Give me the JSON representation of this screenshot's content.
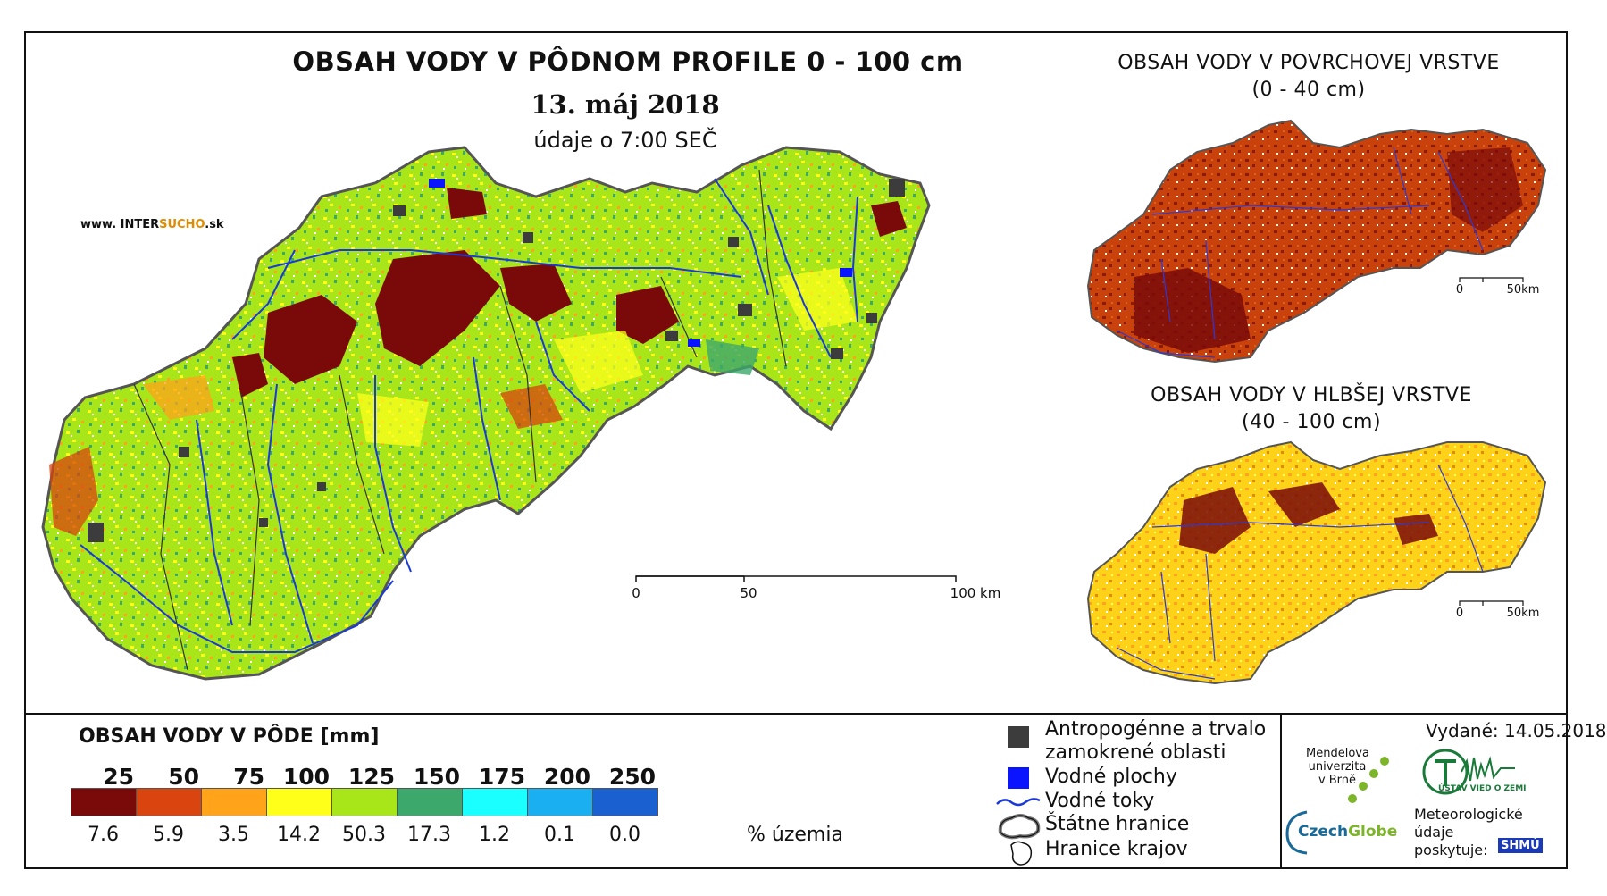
{
  "main_map": {
    "title": "OBSAH VODY V PÔDNOM PROFILE 0 - 100 cm",
    "date": "13. máj 2018",
    "subtitle": "údaje o 7:00 SEČ",
    "website_prefix": "www. INTER",
    "website_brand": "SUCHO",
    "website_suffix": ".sk",
    "scale": {
      "start": "0",
      "mid": "50",
      "end": "100 km"
    }
  },
  "inset_top": {
    "title_line1": "OBSAH VODY V POVRCHOVEJ VRSTVE",
    "title_line2": "(0 - 40 cm)",
    "scale": {
      "start": "0",
      "end": "50km"
    }
  },
  "inset_bottom": {
    "title_line1": "OBSAH VODY V HLBŠEJ VRSTVE",
    "title_line2": "(40 - 100 cm)",
    "scale": {
      "start": "0",
      "end": "50km"
    }
  },
  "legend": {
    "title": "OBSAH VODY V PÔDE [mm]",
    "class_limits": [
      "25",
      "50",
      "75",
      "100",
      "125",
      "150",
      "175",
      "200",
      "250"
    ],
    "colors": [
      "#7a0a0a",
      "#d9440f",
      "#ffa31a",
      "#ffff1a",
      "#a8e61a",
      "#3da86b",
      "#1affff",
      "#1aaff0",
      "#1a60d1"
    ],
    "percentages": [
      "7.6",
      "5.9",
      "3.5",
      "14.2",
      "50.3",
      "17.3",
      "1.2",
      "0.1",
      "0.0"
    ],
    "percent_unit": "% územia"
  },
  "symbols": {
    "anthropogenic_line1": "Antropogénne a trvalo",
    "anthropogenic_line2": "zamokrené oblasti",
    "water_bodies": "Vodné plochy",
    "rivers": "Vodné toky",
    "state_border": "Štátne hranice",
    "region_border": "Hranice krajov",
    "colors": {
      "anthropogenic": "#3c3c3c",
      "water": "#0a14ff",
      "river": "#1a3ad8"
    }
  },
  "credits": {
    "issued": "Vydané: 14.05.2018",
    "mendel_line1": "Mendelova",
    "mendel_line2": "univerzita",
    "mendel_line3": "v Brně",
    "czechglobe_a": "Czech",
    "czechglobe_b": "Globe",
    "ustav": "ÚSTAV VIED O ZEMI",
    "meteo_line1": "Meteorologické",
    "meteo_line2": "údaje",
    "meteo_line3": "poskytuje:",
    "shmu": "SHMÚ"
  }
}
